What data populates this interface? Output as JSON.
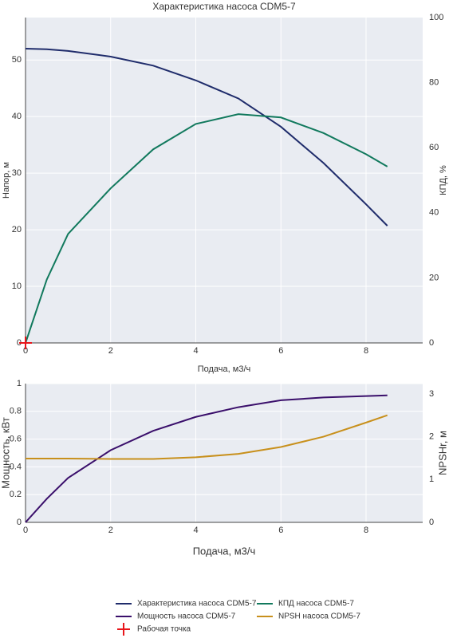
{
  "chart_data": [
    {
      "type": "line",
      "title": "Характеристика насоса CDM5-7",
      "xlabel": "Подача, м3/ч",
      "ylabel": "Напор, м",
      "y2label": "КПД, %",
      "xlim": [
        0,
        9.33
      ],
      "xticks": [
        0,
        2,
        4,
        6,
        8
      ],
      "ylim": [
        0,
        57.5
      ],
      "yticks": [
        0,
        10,
        20,
        30,
        40,
        50
      ],
      "y2lim": [
        0,
        100
      ],
      "y2ticks": [
        0,
        20,
        40,
        60,
        80,
        100
      ],
      "grid": true,
      "series": [
        {
          "name": "Характеристика насоса CDM5-7",
          "color": "#1f2c6b",
          "x": [
            0,
            0.5,
            1,
            2,
            3,
            4,
            5,
            6,
            7,
            8,
            8.5
          ],
          "values": [
            52,
            51.9,
            51.6,
            50.6,
            49,
            46.4,
            43.2,
            38.2,
            31.8,
            24.5,
            20.7
          ]
        },
        {
          "name": "КПД насоса CDM5-7",
          "color": "#11795d",
          "axis": "y2",
          "x": [
            0,
            0.5,
            1,
            2,
            3,
            4,
            5,
            6,
            7,
            8,
            8.5
          ],
          "values": [
            0,
            19.5,
            33.5,
            47.5,
            59.5,
            67.3,
            70.3,
            69.3,
            64.5,
            58,
            54.2
          ]
        },
        {
          "name": "Рабочая точка",
          "color": "#e8161b",
          "marker": "cross",
          "x": [
            0
          ],
          "values": [
            0
          ]
        }
      ]
    },
    {
      "type": "line",
      "xlabel": "Подача, м3/ч",
      "ylabel": "Мощность, кВт",
      "y2label": "NPSHr, м",
      "xlim": [
        0,
        9.33
      ],
      "xticks": [
        0,
        2,
        4,
        6,
        8
      ],
      "ylim": [
        0,
        1
      ],
      "yticks": [
        0,
        0.2,
        0.4,
        0.6,
        0.8,
        1
      ],
      "y2lim": [
        0,
        3.24
      ],
      "y2ticks": [
        0,
        1,
        2,
        3
      ],
      "grid": true,
      "series": [
        {
          "name": "Мощность насоса CDM5-7",
          "color": "#3a0f6b",
          "x": [
            0,
            0.5,
            1,
            2,
            3,
            4,
            5,
            6,
            7,
            8,
            8.5
          ],
          "values": [
            0,
            0.17,
            0.32,
            0.52,
            0.66,
            0.76,
            0.83,
            0.88,
            0.9,
            0.91,
            0.915
          ]
        },
        {
          "name": "NPSH насоса CDM5-7",
          "color": "#c8901c",
          "axis": "y2",
          "x": [
            0,
            0.5,
            1,
            2,
            3,
            4,
            5,
            6,
            7,
            8,
            8.5
          ],
          "values": [
            1.49,
            1.49,
            1.49,
            1.48,
            1.48,
            1.52,
            1.6,
            1.76,
            2.0,
            2.33,
            2.5
          ]
        }
      ]
    }
  ]
}
